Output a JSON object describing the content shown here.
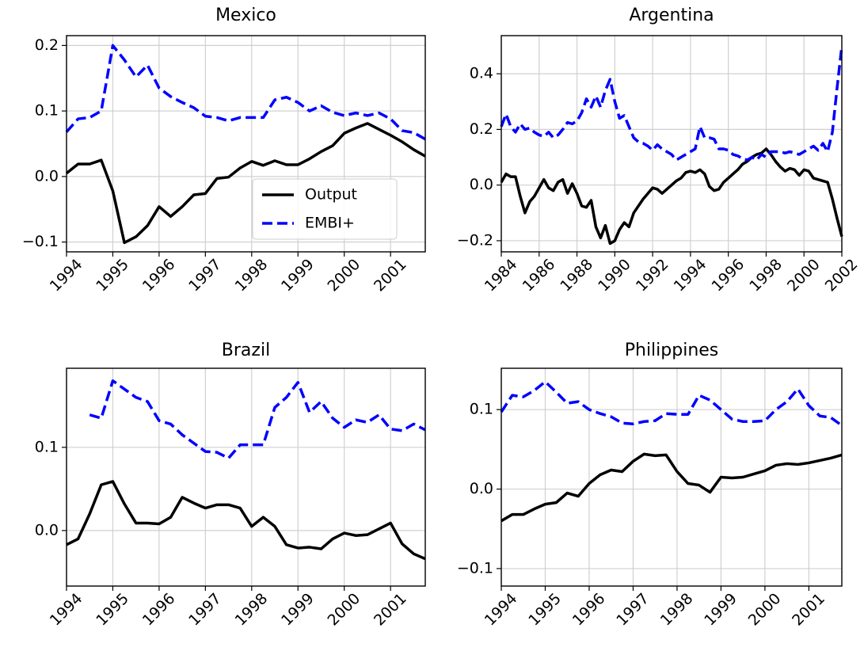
{
  "chart_data": [
    {
      "type": "line",
      "title": "Mexico",
      "grid": true,
      "legend": "lower right",
      "x": [
        1994,
        1994.25,
        1994.5,
        1994.75,
        1995,
        1995.25,
        1995.5,
        1995.75,
        1996,
        1996.25,
        1996.5,
        1996.75,
        1997,
        1997.25,
        1997.5,
        1997.75,
        1998,
        1998.25,
        1998.5,
        1998.75,
        1999,
        1999.25,
        1999.5,
        1999.75,
        2000,
        2000.25,
        2000.5,
        2000.75,
        2001,
        2001.25,
        2001.5,
        2001.75
      ],
      "series": [
        {
          "name": "Output",
          "color": "#000000",
          "linestyle": "solid",
          "values": [
            0.005,
            0.019,
            0.019,
            0.025,
            -0.022,
            -0.101,
            -0.092,
            -0.075,
            -0.046,
            -0.061,
            -0.046,
            -0.028,
            -0.026,
            -0.003,
            -0.001,
            0.013,
            0.023,
            0.017,
            0.024,
            0.018,
            0.018,
            0.027,
            0.038,
            0.047,
            0.066,
            0.074,
            0.081,
            0.072,
            0.063,
            0.053,
            0.041,
            0.031
          ]
        },
        {
          "name": "EMBI+",
          "color": "#0000ff",
          "linestyle": "dashed",
          "values": [
            0.068,
            0.088,
            0.09,
            0.1,
            0.2,
            0.178,
            0.152,
            0.17,
            0.135,
            0.122,
            0.113,
            0.105,
            0.092,
            0.09,
            0.085,
            0.09,
            0.09,
            0.09,
            0.117,
            0.121,
            0.113,
            0.1,
            0.108,
            0.098,
            0.093,
            0.097,
            0.093,
            0.097,
            0.088,
            0.07,
            0.067,
            0.057
          ]
        }
      ],
      "xlim": [
        1994,
        2001.75
      ],
      "xticks": [
        1994,
        1995,
        1996,
        1997,
        1998,
        1999,
        2000,
        2001
      ],
      "ylim": [
        -0.115,
        0.215
      ],
      "yticks": [
        {
          "value": -0.1,
          "label": "−0.1"
        },
        {
          "value": 0,
          "label": "0.0"
        },
        0.1,
        0.2
      ]
    },
    {
      "type": "line",
      "title": "Argentina",
      "grid": true,
      "x": [
        1984,
        1984.25,
        1984.5,
        1984.75,
        1985,
        1985.25,
        1985.5,
        1985.75,
        1986,
        1986.25,
        1986.5,
        1986.75,
        1987,
        1987.25,
        1987.5,
        1987.75,
        1988,
        1988.25,
        1988.5,
        1988.75,
        1989,
        1989.25,
        1989.5,
        1989.75,
        1990,
        1990.25,
        1990.5,
        1990.75,
        1991,
        1991.25,
        1991.5,
        1991.75,
        1992,
        1992.25,
        1992.5,
        1992.75,
        1993,
        1993.25,
        1993.5,
        1993.75,
        1994,
        1994.25,
        1994.5,
        1994.75,
        1995,
        1995.25,
        1995.5,
        1995.75,
        1996,
        1996.25,
        1996.5,
        1996.75,
        1997,
        1997.25,
        1997.5,
        1997.75,
        1998,
        1998.25,
        1998.5,
        1998.75,
        1999,
        1999.25,
        1999.5,
        1999.75,
        2000,
        2000.25,
        2000.5,
        2000.75,
        2001,
        2001.25,
        2001.5,
        2001.75,
        2002
      ],
      "series": [
        {
          "color": "#000000",
          "linestyle": "solid",
          "values": [
            0.01,
            0.04,
            0.03,
            0.03,
            -0.04,
            -0.1,
            -0.06,
            -0.04,
            -0.01,
            0.02,
            -0.01,
            -0.02,
            0.01,
            0.02,
            -0.03,
            0.005,
            -0.03,
            -0.075,
            -0.08,
            -0.055,
            -0.15,
            -0.19,
            -0.145,
            -0.21,
            -0.2,
            -0.16,
            -0.135,
            -0.15,
            -0.1,
            -0.075,
            -0.05,
            -0.03,
            -0.01,
            -0.015,
            -0.03,
            -0.015,
            0,
            0.015,
            0.025,
            0.045,
            0.05,
            0.045,
            0.055,
            0.04,
            -0.005,
            -0.02,
            -0.015,
            0.01,
            0.025,
            0.04,
            0.055,
            0.075,
            0.085,
            0.1,
            0.11,
            0.115,
            0.13,
            0.11,
            0.085,
            0.065,
            0.05,
            0.06,
            0.055,
            0.035,
            0.055,
            0.05,
            0.025,
            0.02,
            0.015,
            0.01,
            -0.05,
            -0.12,
            -0.185
          ]
        },
        {
          "color": "#0000ff",
          "linestyle": "dashed",
          "values": [
            0.21,
            0.255,
            0.21,
            0.19,
            0.22,
            0.2,
            0.205,
            0.19,
            0.18,
            0.175,
            0.19,
            0.17,
            0.18,
            0.2,
            0.225,
            0.22,
            0.23,
            0.26,
            0.31,
            0.28,
            0.32,
            0.28,
            0.34,
            0.38,
            0.3,
            0.24,
            0.25,
            0.21,
            0.17,
            0.155,
            0.15,
            0.14,
            0.125,
            0.145,
            0.13,
            0.12,
            0.11,
            0.09,
            0.1,
            0.11,
            0.12,
            0.13,
            0.21,
            0.17,
            0.17,
            0.165,
            0.13,
            0.13,
            0.125,
            0.11,
            0.105,
            0.095,
            0.09,
            0.1,
            0.09,
            0.11,
            0.1,
            0.12,
            0.12,
            0.12,
            0.115,
            0.12,
            0.115,
            0.11,
            0.12,
            0.13,
            0.14,
            0.125,
            0.15,
            0.12,
            0.19,
            0.35,
            0.5
          ]
        }
      ],
      "xlim": [
        1984,
        2002
      ],
      "xticks": [
        1984,
        1986,
        1988,
        1990,
        1992,
        1994,
        1996,
        1998,
        2000,
        2002
      ],
      "ylim": [
        -0.24,
        0.537
      ],
      "yticks": [
        {
          "value": -0.2,
          "label": "−0.2"
        },
        {
          "value": 0,
          "label": "0.0"
        },
        0.2,
        0.4
      ]
    },
    {
      "type": "line",
      "title": "Brazil",
      "grid": true,
      "x": [
        1994,
        1994.25,
        1994.5,
        1994.75,
        1995,
        1995.25,
        1995.5,
        1995.75,
        1996,
        1996.25,
        1996.5,
        1996.75,
        1997,
        1997.25,
        1997.5,
        1997.75,
        1998,
        1998.25,
        1998.5,
        1998.75,
        1999,
        1999.25,
        1999.5,
        1999.75,
        2000,
        2000.25,
        2000.5,
        2000.75,
        2001,
        2001.25,
        2001.5,
        2001.75
      ],
      "series": [
        {
          "color": "#000000",
          "linestyle": "solid",
          "values": [
            -0.017,
            -0.01,
            0.02,
            0.055,
            0.059,
            0.032,
            0.009,
            0.009,
            0.008,
            0.016,
            0.04,
            0.033,
            0.027,
            0.031,
            0.031,
            0.027,
            0.005,
            0.016,
            0.005,
            -0.017,
            -0.021,
            -0.02,
            -0.022,
            -0.01,
            -0.003,
            -0.006,
            -0.005,
            0.002,
            0.009,
            -0.016,
            -0.028,
            -0.034
          ]
        },
        {
          "color": "#0000ff",
          "linestyle": "dashed",
          "values": [
            null,
            null,
            0.139,
            0.135,
            0.18,
            0.17,
            0.16,
            0.155,
            0.132,
            0.128,
            0.115,
            0.105,
            0.095,
            0.094,
            0.087,
            0.103,
            0.103,
            0.103,
            0.148,
            0.16,
            0.178,
            0.142,
            0.155,
            0.135,
            0.124,
            0.133,
            0.13,
            0.139,
            0.122,
            0.12,
            0.128,
            0.121
          ]
        }
      ],
      "xlim": [
        1994,
        2001.75
      ],
      "xticks": [
        1994,
        1995,
        1996,
        1997,
        1998,
        1999,
        2000,
        2001
      ],
      "ylim": [
        -0.0667,
        0.195
      ],
      "yticks": [
        {
          "value": 0,
          "label": "0.0"
        },
        0.1
      ]
    },
    {
      "type": "line",
      "title": "Philippines",
      "grid": true,
      "x": [
        1994,
        1994.25,
        1994.5,
        1994.75,
        1995,
        1995.25,
        1995.5,
        1995.75,
        1996,
        1996.25,
        1996.5,
        1996.75,
        1997,
        1997.25,
        1997.5,
        1997.75,
        1998,
        1998.25,
        1998.5,
        1998.75,
        1999,
        1999.25,
        1999.5,
        1999.75,
        2000,
        2000.25,
        2000.5,
        2000.75,
        2001,
        2001.25,
        2001.5,
        2001.75
      ],
      "series": [
        {
          "color": "#000000",
          "linestyle": "solid",
          "values": [
            -0.04,
            -0.032,
            -0.032,
            -0.025,
            -0.019,
            -0.017,
            -0.005,
            -0.009,
            0.007,
            0.018,
            0.024,
            0.022,
            0.035,
            0.044,
            0.042,
            0.043,
            0.022,
            0.007,
            0.005,
            -0.004,
            0.015,
            0.014,
            0.015,
            0.019,
            0.023,
            0.03,
            0.032,
            0.031,
            0.033,
            0.036,
            0.039,
            0.043
          ]
        },
        {
          "color": "#0000ff",
          "linestyle": "dashed",
          "values": [
            0.097,
            0.118,
            0.116,
            0.124,
            0.135,
            0.122,
            0.108,
            0.11,
            0.1,
            0.095,
            0.091,
            0.083,
            0.082,
            0.085,
            0.086,
            0.095,
            0.094,
            0.094,
            0.118,
            0.112,
            0.1,
            0.088,
            0.085,
            0.085,
            0.086,
            0.1,
            0.11,
            0.126,
            0.105,
            0.092,
            0.09,
            0.08
          ]
        }
      ],
      "xlim": [
        1994,
        2001.75
      ],
      "xticks": [
        1994,
        1995,
        1996,
        1997,
        1998,
        1999,
        2000,
        2001
      ],
      "ylim": [
        -0.122,
        0.152
      ],
      "yticks": [
        {
          "value": -0.1,
          "label": "−0.1"
        },
        {
          "value": 0,
          "label": "0.0"
        },
        0.1
      ]
    }
  ]
}
